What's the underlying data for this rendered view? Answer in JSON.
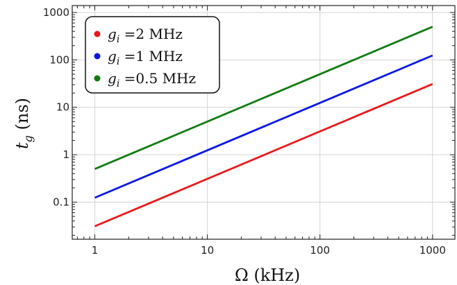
{
  "chart_data": {
    "type": "line",
    "title": "",
    "xlabel": "Ω (kHz)",
    "ylabel_main": "t",
    "ylabel_sub": "g",
    "ylabel_unit": " (ns)",
    "x_scale": "log",
    "y_scale": "log",
    "xlim": [
      0.63,
      1580
    ],
    "ylim": [
      0.0165,
      1400
    ],
    "x_ticks": [
      1,
      10,
      100,
      1000
    ],
    "x_tick_labels": [
      "1",
      "10",
      "100",
      "1000"
    ],
    "y_ticks": [
      0.1,
      1,
      10,
      100,
      1000
    ],
    "y_tick_labels": [
      "0.1",
      "1",
      "10",
      "100",
      "1000"
    ],
    "grid": true,
    "legend_position": "top-left",
    "series": [
      {
        "legend_prefix": "g",
        "legend_sub": "i",
        "legend_value": " =2 MHz",
        "color": "#e8191b",
        "x": [
          1,
          1000
        ],
        "y": [
          0.031,
          31
        ]
      },
      {
        "legend_prefix": "g",
        "legend_sub": "i",
        "legend_value": " =1 MHz",
        "color": "#0a17e6",
        "x": [
          1,
          1000
        ],
        "y": [
          0.124,
          124
        ]
      },
      {
        "legend_prefix": "g",
        "legend_sub": "i",
        "legend_value": " =0.5 MHz",
        "color": "#127a12",
        "x": [
          1,
          1000
        ],
        "y": [
          0.5,
          500
        ]
      }
    ]
  }
}
